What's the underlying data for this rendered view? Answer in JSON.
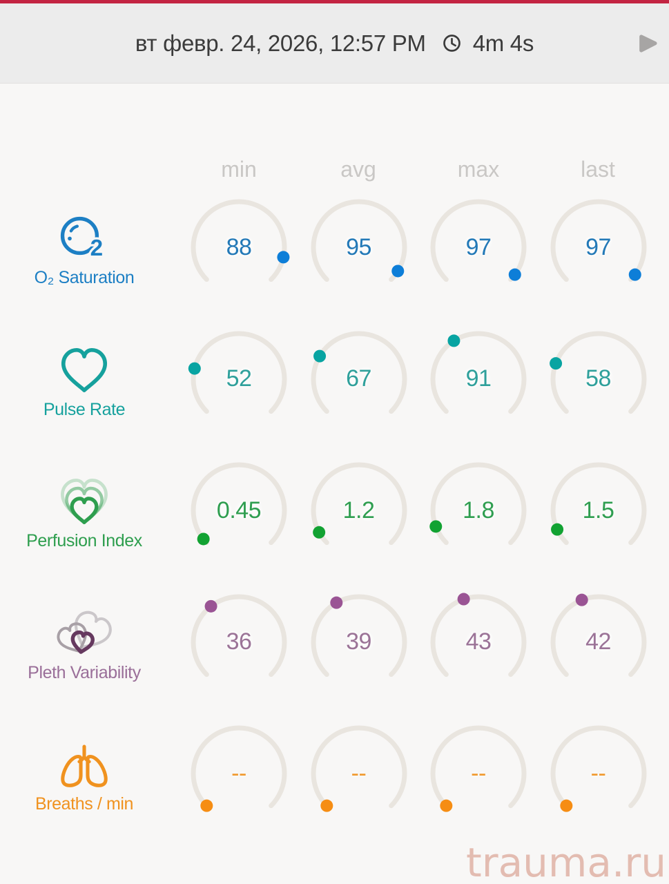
{
  "app": {
    "top_bar_color": "#c32442",
    "background_color": "#f8f7f6",
    "header_background_color": "#ececec"
  },
  "header": {
    "date": "вт февр. 24, 2026, 12:57 PM",
    "duration": "4m 4s",
    "text_color": "#3b3b3b",
    "clock_icon": "clock-icon",
    "play_icon": "play-icon",
    "play_color": "#a7a5a4"
  },
  "columns": [
    "min",
    "avg",
    "max",
    "last"
  ],
  "watermark": {
    "text": "trauma.ru",
    "color": "#e3bcb1"
  },
  "chart_data": {
    "type": "gauge-grid",
    "columns": [
      "min",
      "avg",
      "max",
      "last"
    ],
    "gauge": {
      "arc_color": "#e9e5df",
      "start_angle_deg": 225,
      "sweep_angle_deg": 270
    },
    "rows": [
      {
        "label": "O₂ Saturation",
        "icon": "o2-bubble-icon",
        "color": "#1d7fc4",
        "value_color": "#2379b7",
        "dot_color": "#0d7ed8",
        "scale_min": 0,
        "scale_max": 100,
        "values": [
          88,
          95,
          97,
          97
        ],
        "display": [
          "88",
          "95",
          "97",
          "97"
        ]
      },
      {
        "label": "Pulse Rate",
        "icon": "heart-icon",
        "color": "#16a19d",
        "value_color": "#2fa09b",
        "dot_color": "#08a4a2",
        "scale_min": 0,
        "scale_max": 240,
        "values": [
          52,
          67,
          91,
          58
        ],
        "display": [
          "52",
          "67",
          "91",
          "58"
        ]
      },
      {
        "label": "Perfusion Index",
        "icon": "nested-hearts-icon",
        "color": "#2e9e4e",
        "value_color": "#2f9e50",
        "dot_color": "#12a232",
        "scale_min": 0,
        "scale_max": 20,
        "values": [
          0.45,
          1.2,
          1.8,
          1.5
        ],
        "display": [
          "0.45",
          "1.2",
          "1.8",
          "1.5"
        ]
      },
      {
        "label": "Pleth Variability",
        "icon": "overlapping-hearts-icon",
        "color": "#9a6f99",
        "value_color": "#9b7397",
        "dot_color": "#9a5494",
        "scale_min": 0,
        "scale_max": 100,
        "values": [
          36,
          39,
          43,
          42
        ],
        "display": [
          "36",
          "39",
          "43",
          "42"
        ]
      },
      {
        "label": "Breaths / min",
        "icon": "lungs-icon",
        "color": "#f0921f",
        "value_color": "#f09a2f",
        "dot_color": "#f68d13",
        "scale_min": 0,
        "scale_max": 100,
        "values": [
          null,
          null,
          null,
          null
        ],
        "display": [
          "--",
          "--",
          "--",
          "--"
        ]
      }
    ]
  }
}
